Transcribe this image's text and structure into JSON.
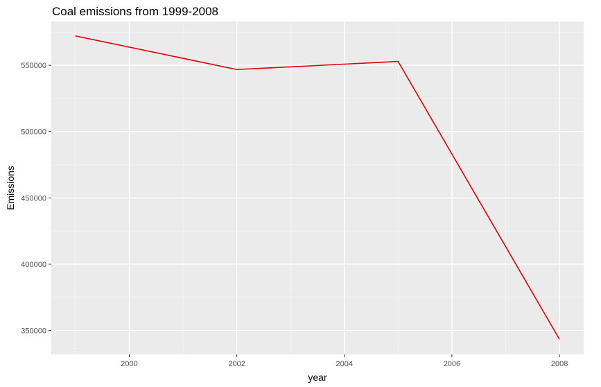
{
  "chart_data": {
    "type": "line",
    "title": "Coal emissions from 1999-2008",
    "xlabel": "year",
    "ylabel": "Emissions",
    "x": [
      1999,
      2002,
      2005,
      2008
    ],
    "series": [
      {
        "values": [
          572126,
          546789,
          552881,
          343432
        ]
      }
    ],
    "xlim": [
      1998.55,
      2008.45
    ],
    "ylim": [
      332000,
      583000
    ],
    "x_ticks": [
      2000,
      2002,
      2004,
      2006,
      2008
    ],
    "y_ticks": [
      350000,
      400000,
      450000,
      500000,
      550000
    ],
    "x_tick_labels": [
      "2000",
      "2002",
      "2004",
      "2006",
      "2008"
    ],
    "y_tick_labels": [
      "350000",
      "400000",
      "450000",
      "500000",
      "550000"
    ],
    "grid": true,
    "legend": "none"
  },
  "colors": {
    "panel_background": "#ebebeb",
    "grid_major": "#ffffff",
    "grid_minor": "#f5f5f5",
    "line": "#e00000",
    "tick_text": "#4d4d4d",
    "tick_mark": "#333333"
  }
}
